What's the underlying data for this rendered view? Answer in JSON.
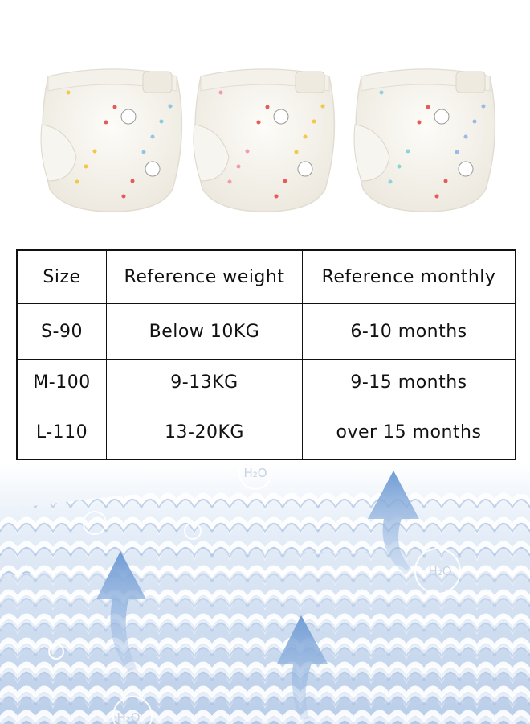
{
  "table": {
    "header": [
      "Size",
      "Reference weight",
      "Reference monthly"
    ],
    "rows": [
      [
        "S-90",
        "Below 10KG",
        "6-10 months"
      ],
      [
        "M-100",
        "9-13KG",
        "9-15 months"
      ],
      [
        "L-110",
        "13-20KG",
        "over 15 months"
      ]
    ]
  },
  "bubbles": [
    "H₂O",
    "H₂O",
    "H₂O"
  ]
}
